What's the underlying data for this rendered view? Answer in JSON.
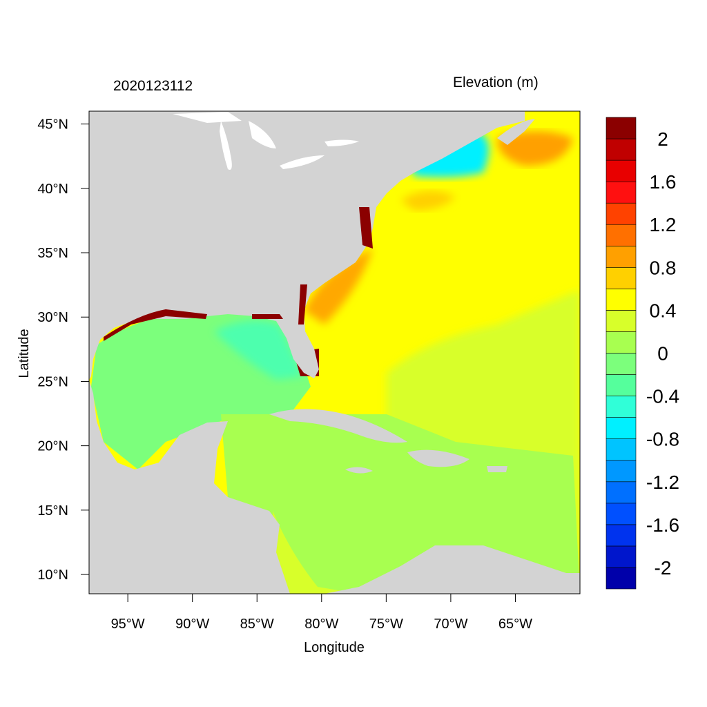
{
  "header": {
    "date_stamp": "2020123112",
    "variable_title": "Elevation (m)"
  },
  "axes": {
    "xlabel": "Longitude",
    "ylabel": "Latitude",
    "lon_range": [
      -98,
      -60
    ],
    "lat_range": [
      8.5,
      46
    ],
    "lon_ticks": [
      {
        "value": -95,
        "label": "95°W"
      },
      {
        "value": -90,
        "label": "90°W"
      },
      {
        "value": -85,
        "label": "85°W"
      },
      {
        "value": -80,
        "label": "80°W"
      },
      {
        "value": -75,
        "label": "75°W"
      },
      {
        "value": -70,
        "label": "70°W"
      },
      {
        "value": -65,
        "label": "65°W"
      }
    ],
    "lat_ticks": [
      {
        "value": 45,
        "label": "45°N"
      },
      {
        "value": 40,
        "label": "40°N"
      },
      {
        "value": 35,
        "label": "35°N"
      },
      {
        "value": 30,
        "label": "30°N"
      },
      {
        "value": 25,
        "label": "25°N"
      },
      {
        "value": 20,
        "label": "20°N"
      },
      {
        "value": 15,
        "label": "15°N"
      },
      {
        "value": 10,
        "label": "10°N"
      }
    ]
  },
  "colorbar": {
    "colors": [
      "#0000aa",
      "#0016cc",
      "#0033ee",
      "#0050ff",
      "#0070ff",
      "#0098ff",
      "#00c4ff",
      "#00f0ff",
      "#30ffd8",
      "#55ff9c",
      "#7cff7c",
      "#a8ff50",
      "#d8ff2a",
      "#ffff00",
      "#ffd000",
      "#ffa000",
      "#ff7000",
      "#ff4200",
      "#ff1010",
      "#e80000",
      "#c00000",
      "#8b0000"
    ],
    "tick_labels": [
      {
        "value": 2,
        "label": "2"
      },
      {
        "value": 1.6,
        "label": "1.6"
      },
      {
        "value": 1.2,
        "label": "1.2"
      },
      {
        "value": 0.8,
        "label": "0.8"
      },
      {
        "value": 0.4,
        "label": "0.4"
      },
      {
        "value": 0,
        "label": "0"
      },
      {
        "value": -0.4,
        "label": "-0.4"
      },
      {
        "value": -0.8,
        "label": "-0.8"
      },
      {
        "value": -1.2,
        "label": "-1.2"
      },
      {
        "value": -1.6,
        "label": "-1.6"
      },
      {
        "value": -2,
        "label": "-2"
      }
    ],
    "min": -2.2,
    "max": 2.2
  },
  "colors": {
    "land": "#d3d3d3",
    "frame": "#000000",
    "lake": "#ffffff"
  }
}
